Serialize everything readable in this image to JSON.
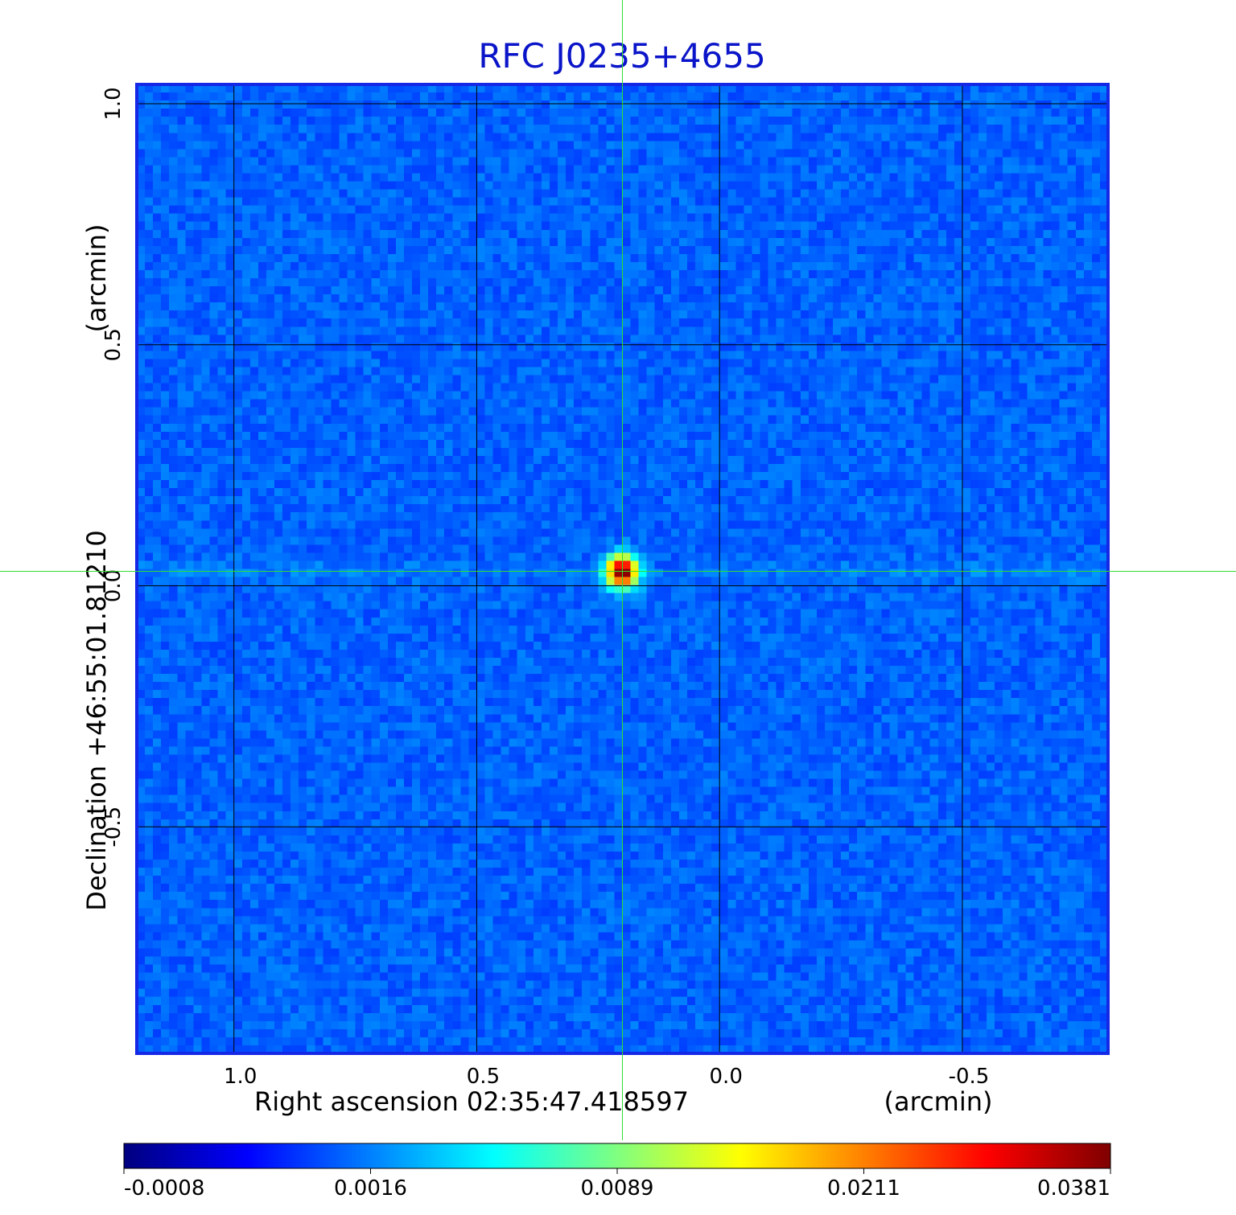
{
  "chart_data": {
    "type": "heatmap",
    "title": "RFC J0235+4655",
    "xlabel": "Right ascension  02:35:47.418597",
    "xunit": "(arcmin)",
    "ylabel": "Declination  +46:55:01.81210",
    "yunit": "(arcmin)",
    "xlim": [
      1.2,
      -0.8
    ],
    "ylim": [
      -0.97,
      1.04
    ],
    "x_ticks": [
      {
        "value": 1.0,
        "label": "1.0"
      },
      {
        "value": 0.5,
        "label": "0.5"
      },
      {
        "value": 0.0,
        "label": "0.0"
      },
      {
        "value": -0.5,
        "label": "-0.5"
      }
    ],
    "y_ticks": [
      {
        "value": 1.0,
        "label": "1.0"
      },
      {
        "value": 0.5,
        "label": "0.5"
      },
      {
        "value": 0.0,
        "label": "0.0"
      },
      {
        "value": -0.5,
        "label": "-0.5"
      }
    ],
    "grid": true,
    "crosshair": {
      "x": 0.2,
      "y": 0.03
    },
    "peak": {
      "x": 0.2,
      "y": 0.03,
      "value": 0.0381
    },
    "colorbar": {
      "ticks": [
        {
          "value": -0.0008,
          "label": "-0.0008"
        },
        {
          "value": 0.0016,
          "label": "0.0016"
        },
        {
          "value": 0.0089,
          "label": "0.0089"
        },
        {
          "value": 0.0211,
          "label": "0.0211"
        },
        {
          "value": 0.0381,
          "label": "0.0381"
        }
      ],
      "colors": [
        "#00007f",
        "#0000ff",
        "#0080ff",
        "#00ffff",
        "#80ff80",
        "#ffff00",
        "#ff8000",
        "#ff0000",
        "#7f0000"
      ]
    },
    "colors": {
      "title": "#0a14c8",
      "frame": "#1428e6",
      "background_map": "#1a50f0",
      "crosshair": "#32dc32",
      "grid": "#000000"
    }
  }
}
